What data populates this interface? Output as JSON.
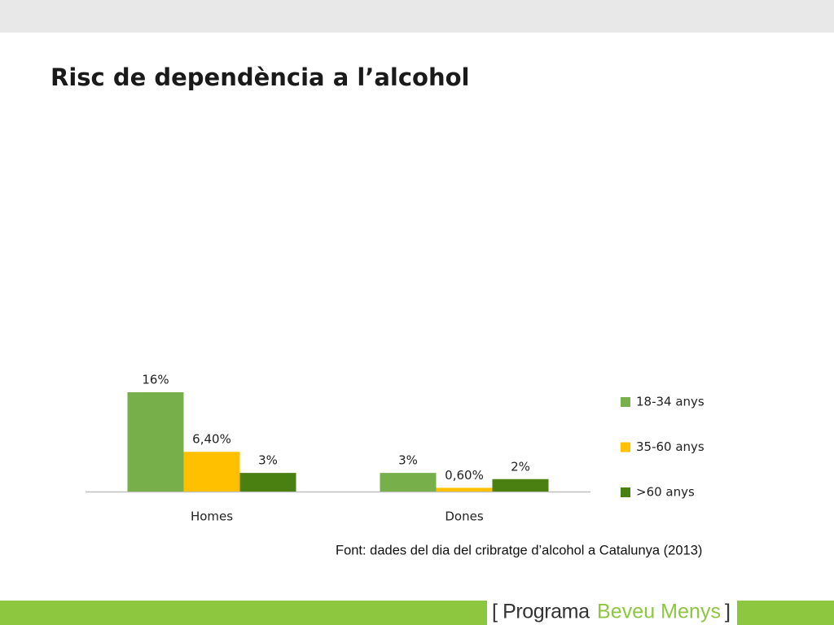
{
  "chart_data": {
    "type": "bar",
    "title": "Risc de dependència a l’alcohol",
    "categories": [
      "Homes",
      "Dones"
    ],
    "series": [
      {
        "name": "18-34 anys",
        "color": "#77b04a",
        "values": [
          16,
          3
        ],
        "value_labels": [
          "16%",
          "3%"
        ]
      },
      {
        "name": "35-60 anys",
        "color": "#ffc000",
        "values": [
          6.4,
          0.6
        ],
        "value_labels": [
          "6,40%",
          "0,60%"
        ]
      },
      {
        "name": ">60 anys",
        "color": "#4a7f12",
        "values": [
          3,
          2
        ],
        "value_labels": [
          "3%",
          "2%"
        ]
      }
    ],
    "legend": "right",
    "source": "Font: dades del dia del cribratge d’alcohol a Catalunya (2013)"
  },
  "footer": [
    "[ Programa",
    "Beveu Menys",
    "]"
  ]
}
